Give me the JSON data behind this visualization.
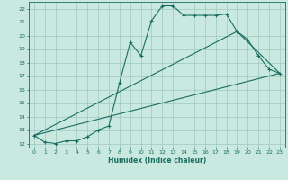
{
  "xlabel": "Humidex (Indice chaleur)",
  "xlim": [
    -0.5,
    23.5
  ],
  "ylim": [
    11.7,
    22.5
  ],
  "xticks": [
    0,
    1,
    2,
    3,
    4,
    5,
    6,
    7,
    8,
    9,
    10,
    11,
    12,
    13,
    14,
    15,
    16,
    17,
    18,
    19,
    20,
    21,
    22,
    23
  ],
  "yticks": [
    12,
    13,
    14,
    15,
    16,
    17,
    18,
    19,
    20,
    21,
    22
  ],
  "background_color": "#c8e8e0",
  "line_color": "#1a6e60",
  "grid_color": "#a0c8c0",
  "line1_x": [
    0,
    1,
    2,
    3,
    4,
    5,
    6,
    7,
    8,
    9,
    10,
    11,
    12,
    13,
    14,
    15,
    16,
    17,
    18,
    19,
    20,
    21,
    22,
    23
  ],
  "line1_y": [
    12.6,
    12.1,
    12.0,
    12.2,
    12.2,
    12.5,
    13.0,
    13.3,
    16.5,
    19.5,
    18.5,
    21.1,
    22.2,
    22.2,
    21.5,
    21.5,
    21.5,
    21.5,
    21.6,
    20.3,
    19.7,
    18.5,
    17.5,
    17.2
  ],
  "line2_x": [
    0,
    23
  ],
  "line2_y": [
    12.6,
    17.2
  ],
  "line3_x": [
    0,
    19,
    23
  ],
  "line3_y": [
    12.6,
    20.3,
    17.2
  ]
}
